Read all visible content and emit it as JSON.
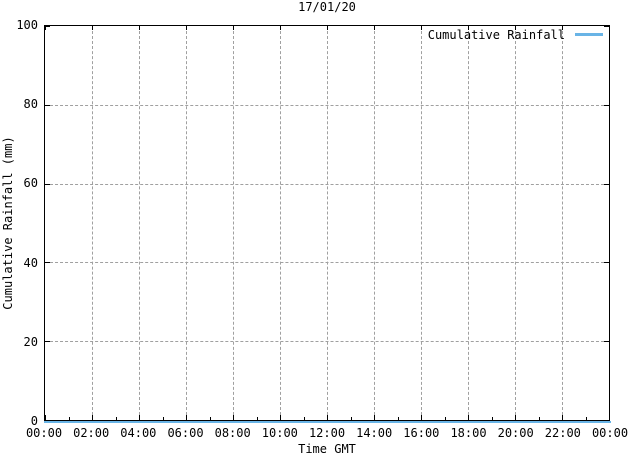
{
  "chart_data": {
    "type": "line",
    "title": "17/01/20",
    "xlabel": "Time GMT",
    "ylabel": "Cumulative Rainfall (mm)",
    "ylim": [
      0,
      100
    ],
    "y_ticks": [
      0,
      20,
      40,
      60,
      80,
      100
    ],
    "x_ticks": [
      "00:00",
      "02:00",
      "04:00",
      "06:00",
      "08:00",
      "10:00",
      "12:00",
      "14:00",
      "16:00",
      "18:00",
      "20:00",
      "22:00",
      "00:00"
    ],
    "x_minor_ticks_per_interval": 1,
    "grid": true,
    "legend_position": "top-right-inside",
    "background_color": "#ffffff",
    "axis_color": "#000000",
    "grid_color": "#a0a0a0",
    "series": [
      {
        "name": "Cumulative Rainfall",
        "color": "#69b4e6",
        "x": [
          "00:00",
          "02:00",
          "04:00",
          "06:00",
          "08:00",
          "10:00",
          "12:00",
          "14:00",
          "16:00",
          "18:00",
          "20:00",
          "22:00",
          "24:00"
        ],
        "values": [
          0,
          0,
          0,
          0,
          0,
          0,
          0,
          0,
          0,
          0,
          0,
          0,
          0
        ]
      }
    ]
  }
}
